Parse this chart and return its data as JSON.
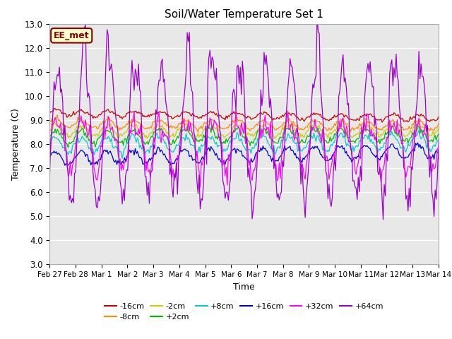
{
  "title": "Soil/Water Temperature Set 1",
  "xlabel": "Time",
  "ylabel": "Temperature (C)",
  "ylim": [
    3.0,
    13.0
  ],
  "yticks": [
    3.0,
    4.0,
    5.0,
    6.0,
    7.0,
    8.0,
    9.0,
    10.0,
    11.0,
    12.0,
    13.0
  ],
  "xtick_labels": [
    "Feb 27",
    "Feb 28",
    "Mar 1",
    "Mar 2",
    "Mar 3",
    "Mar 4",
    "Mar 5",
    "Mar 6",
    "Mar 7",
    "Mar 8",
    "Mar 9",
    "Mar 10",
    "Mar 11",
    "Mar 12",
    "Mar 13",
    "Mar 14"
  ],
  "num_days": 16,
  "plot_bg_color": "#e8e8e8",
  "annotation_text": "EE_met",
  "annotation_bg": "#ffffcc",
  "annotation_border": "#8b0000",
  "series": [
    {
      "label": "-16cm",
      "color": "#cc0000",
      "base": 9.3,
      "amp": 0.12,
      "phase": 0.0,
      "trend": -0.015,
      "noise": 0.04
    },
    {
      "label": "-8cm",
      "color": "#ff8c00",
      "base": 8.85,
      "amp": 0.18,
      "phase": 0.1,
      "trend": -0.005,
      "noise": 0.05
    },
    {
      "label": "-2cm",
      "color": "#cccc00",
      "base": 8.55,
      "amp": 0.22,
      "phase": 0.15,
      "trend": 0.002,
      "noise": 0.06
    },
    {
      "label": "+2cm",
      "color": "#00bb00",
      "base": 8.3,
      "amp": 0.28,
      "phase": 0.2,
      "trend": 0.005,
      "noise": 0.07
    },
    {
      "label": "+8cm",
      "color": "#00cccc",
      "base": 7.95,
      "amp": 0.32,
      "phase": 0.25,
      "trend": 0.01,
      "noise": 0.08
    },
    {
      "label": "+16cm",
      "color": "#0000cc",
      "base": 7.4,
      "amp": 0.28,
      "phase": 0.3,
      "trend": 0.02,
      "noise": 0.06
    },
    {
      "label": "+32cm",
      "color": "#ff00ff",
      "base": 8.0,
      "amp": 1.0,
      "phase": -0.3,
      "trend": 0.0,
      "noise": 0.25
    },
    {
      "label": "+64cm",
      "color": "#9900cc",
      "base": 8.5,
      "amp": 2.8,
      "phase": -0.5,
      "trend": 0.0,
      "noise": 0.4
    }
  ]
}
